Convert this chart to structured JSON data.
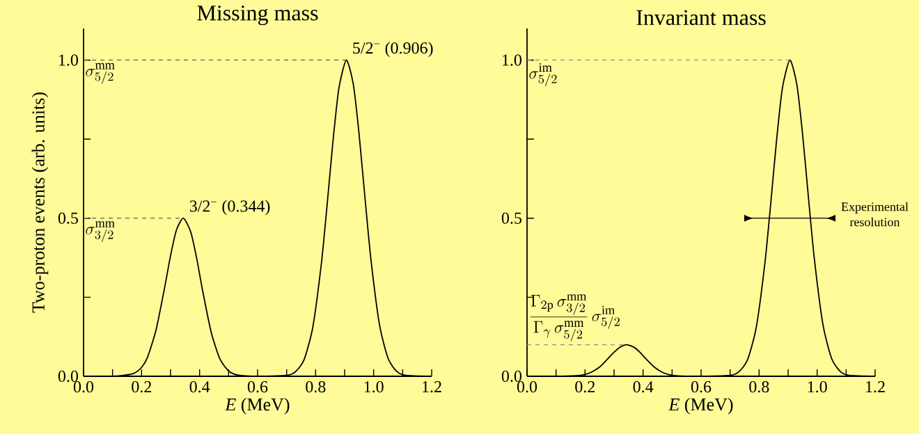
{
  "chart_data": [
    {
      "type": "line",
      "title": "Missing mass",
      "xlabel": "*E*  (MeV)",
      "ylabel": "Two-proton events (arb. units)",
      "x": [
        0,
        0.1,
        0.17,
        0.2,
        0.22,
        0.25,
        0.28,
        0.3,
        0.32,
        0.344,
        0.37,
        0.39,
        0.41,
        0.44,
        0.47,
        0.5,
        0.53,
        0.6,
        0.7,
        0.73,
        0.76,
        0.79,
        0.82,
        0.84,
        0.86,
        0.88,
        0.906,
        0.93,
        0.95,
        0.97,
        0.99,
        1.02,
        1.05,
        1.08,
        1.11,
        1.2
      ],
      "series": [
        {
          "color": "#000000",
          "values": [
            0,
            0,
            0.008,
            0.028,
            0.059,
            0.147,
            0.283,
            0.382,
            0.462,
            0.5,
            0.455,
            0.373,
            0.273,
            0.139,
            0.055,
            0.017,
            0.004,
            0,
            0.003,
            0.014,
            0.052,
            0.154,
            0.358,
            0.546,
            0.745,
            0.91,
            1,
            0.923,
            0.764,
            0.566,
            0.375,
            0.164,
            0.056,
            0.015,
            0.003,
            0
          ]
        }
      ],
      "xlim": [
        0,
        1.2
      ],
      "ylim": [
        0,
        1.1
      ],
      "xticks": [
        {
          "value": 0,
          "label": "0.0"
        },
        {
          "value": 0.1,
          "label": null
        },
        0.2,
        {
          "value": 0.3,
          "label": null
        },
        0.4,
        {
          "value": 0.5,
          "label": null
        },
        0.6,
        {
          "value": 0.7,
          "label": null
        },
        0.8,
        {
          "value": 0.9,
          "label": null
        },
        {
          "value": 1,
          "label": "1.0"
        },
        {
          "value": 1.1,
          "label": null
        },
        1.2
      ],
      "yticks": [
        {
          "value": 0,
          "label": "0.0"
        },
        {
          "value": 0.25,
          "label": null
        },
        0.5,
        {
          "value": 0.75,
          "label": null
        },
        {
          "value": 1,
          "label": "1.0"
        }
      ],
      "ref_lines": [
        {
          "axis": "y",
          "value": 0.5,
          "label": "\\sigma_{3/2}^{\\mathrm{mm}}",
          "color": "#606060",
          "line_style": "dashed"
        },
        {
          "axis": "y",
          "value": 1,
          "label": "\\sigma_{5/2}^{\\mathrm{mm}}",
          "color": "#606060",
          "line_style": "dashed"
        }
      ],
      "annotations": [
        {
          "text": "3/2$^{−}$  (0.344)",
          "x": 0.344,
          "y": 0.5
        },
        {
          "text": "5/2$^{−}$  (0.906)",
          "x": 0.906,
          "y": 1
        }
      ],
      "line_style": "solid"
    },
    {
      "type": "line",
      "title": "Invariant mass",
      "xlabel": "*E*  (MeV)",
      "x": [
        0,
        0.1,
        0.17,
        0.2,
        0.22,
        0.25,
        0.28,
        0.3,
        0.32,
        0.344,
        0.37,
        0.39,
        0.41,
        0.44,
        0.47,
        0.5,
        0.53,
        0.6,
        0.7,
        0.73,
        0.76,
        0.79,
        0.82,
        0.84,
        0.86,
        0.88,
        0.906,
        0.93,
        0.95,
        0.97,
        0.99,
        1.02,
        1.05,
        1.08,
        1.11,
        1.2
      ],
      "series": [
        {
          "color": "#000000",
          "values": [
            0,
            0,
            0.002,
            0.006,
            0.012,
            0.029,
            0.057,
            0.076,
            0.092,
            0.1,
            0.091,
            0.075,
            0.055,
            0.028,
            0.011,
            0.003,
            0.001,
            0,
            0.003,
            0.014,
            0.052,
            0.154,
            0.358,
            0.546,
            0.745,
            0.91,
            1,
            0.923,
            0.764,
            0.566,
            0.375,
            0.164,
            0.056,
            0.015,
            0.003,
            0
          ]
        }
      ],
      "xlim": [
        0,
        1.2
      ],
      "ylim": [
        0,
        1.1
      ],
      "xticks": [
        {
          "value": 0,
          "label": "0.0"
        },
        {
          "value": 0.1,
          "label": null
        },
        0.2,
        {
          "value": 0.3,
          "label": null
        },
        0.4,
        {
          "value": 0.5,
          "label": null
        },
        0.6,
        {
          "value": 0.7,
          "label": null
        },
        0.8,
        {
          "value": 0.9,
          "label": null
        },
        {
          "value": 1,
          "label": "1.0"
        },
        {
          "value": 1.1,
          "label": null
        },
        1.2
      ],
      "yticks": [
        {
          "value": 0,
          "label": "0.0"
        },
        {
          "value": 0.25,
          "label": null
        },
        0.5,
        {
          "value": 0.75,
          "label": null
        },
        {
          "value": 1,
          "label": "1.0"
        }
      ],
      "ref_lines": [
        {
          "axis": "y",
          "value": 0.1,
          "label": "\\frac{\\Gamma_{2\\mathrm{p}}\\,\\sigma_{3/2}^{\\mathrm{mm}}}{\\Gamma_{\\gamma}\\,\\sigma_{5/2}^{\\mathrm{mm}}}\\,\\sigma_{5/2}^{\\mathrm{im}}",
          "color": "#909090",
          "line_style": "dashed"
        },
        {
          "axis": "y",
          "value": 1,
          "label": "\\sigma_{5/2}^{\\mathrm{im}}",
          "color": "#909090",
          "line_style": "dashed"
        }
      ],
      "annotations": [
        "Experimental resolution"
      ],
      "line_style": "solid"
    }
  ]
}
